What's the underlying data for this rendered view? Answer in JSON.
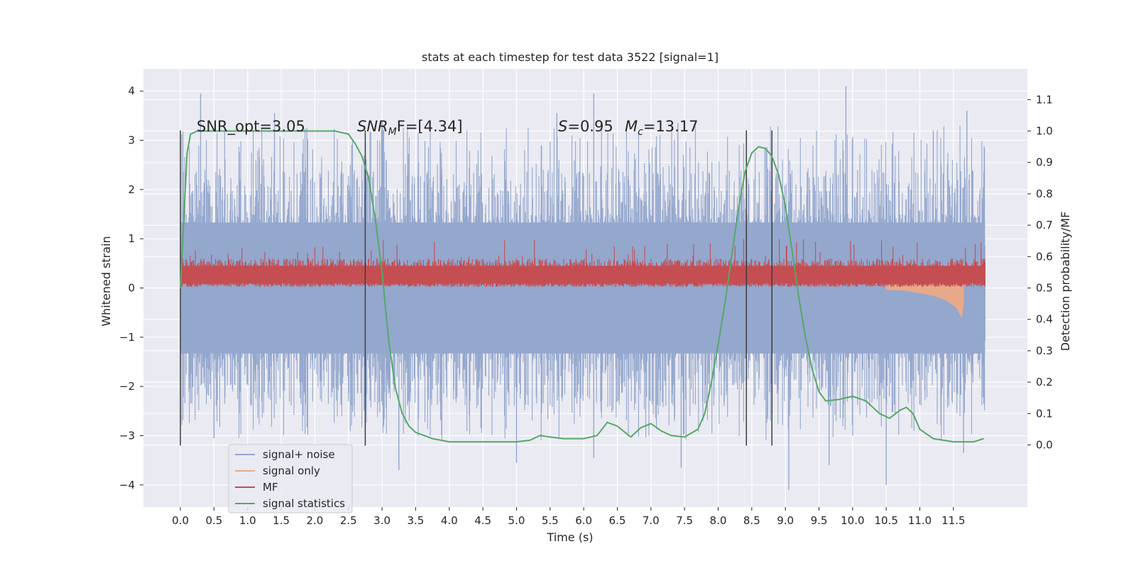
{
  "chart_data": {
    "type": "line",
    "title": "stats at each timestep for test data 3522 [signal=1]",
    "xlabel": "Time (s)",
    "ylabel": "Whitened strain",
    "y2label": "Detection probability/MF",
    "xlim": [
      -0.55,
      12.6
    ],
    "ylim": [
      -4.45,
      4.45
    ],
    "y2lim": [
      -0.198,
      1.198
    ],
    "x_ticks": [
      "0.0",
      "0.5",
      "1.0",
      "1.5",
      "2.0",
      "2.5",
      "3.0",
      "3.5",
      "4.0",
      "4.5",
      "5.0",
      "5.5",
      "6.0",
      "6.5",
      "7.0",
      "7.5",
      "8.0",
      "8.5",
      "9.0",
      "9.5",
      "10.0",
      "10.5",
      "11.0",
      "11.5"
    ],
    "y_ticks": [
      "4",
      "3",
      "2",
      "1",
      "0",
      "−1",
      "−2",
      "−3",
      "−4"
    ],
    "y2_ticks": [
      "1.1",
      "1.0",
      "0.9",
      "0.8",
      "0.7",
      "0.6",
      "0.5",
      "0.4",
      "0.3",
      "0.2",
      "0.1",
      "0.0"
    ],
    "grid": true,
    "legend_position": "lower-left",
    "annotations": {
      "snr_opt": "SNR_opt=3.05",
      "snr_mf_sym": "SNR",
      "snr_mf_sub": "M",
      "snr_mf_rest": "F=[4.34]",
      "s_sym": "S",
      "s_rest": "=0.95",
      "mc_sym": "M",
      "mc_sub": "c",
      "mc_rest": "=13.17"
    },
    "vertical_markers": [
      0.0,
      2.75,
      8.42,
      8.8
    ],
    "vertical_marker_range": [
      -3.2,
      3.2
    ],
    "series": [
      {
        "name": "signal+ noise",
        "color": "#94a7cd",
        "x_range": [
          0.0,
          11.97
        ],
        "typical_upper": 1.9,
        "typical_lower": -1.9,
        "peaks": [
          [
            0.3,
            3.95
          ],
          [
            1.4,
            3.55
          ],
          [
            3.0,
            3.4
          ],
          [
            5.6,
            3.55
          ],
          [
            6.15,
            3.95
          ],
          [
            7.4,
            3.35
          ],
          [
            9.9,
            4.1
          ],
          [
            11.2,
            3.2
          ],
          [
            11.7,
            3.6
          ]
        ],
        "troughs": [
          [
            0.5,
            -3.05
          ],
          [
            3.25,
            -3.7
          ],
          [
            5.0,
            -3.55
          ],
          [
            6.15,
            -3.45
          ],
          [
            7.45,
            -3.65
          ],
          [
            9.05,
            -4.1
          ],
          [
            9.65,
            -3.6
          ],
          [
            10.5,
            -4.0
          ],
          [
            11.65,
            -3.35
          ]
        ]
      },
      {
        "name": "signal only",
        "color": "#e8a98a",
        "x": [
          10.5,
          10.8,
          11.0,
          11.2,
          11.4,
          11.55,
          11.62,
          11.65
        ],
        "upper": [
          0.06,
          0.08,
          0.12,
          0.18,
          0.3,
          0.4,
          0.55,
          0.1
        ],
        "lower": [
          -0.03,
          -0.05,
          -0.1,
          -0.15,
          -0.25,
          -0.4,
          -0.6,
          -0.3
        ]
      },
      {
        "name": "MF",
        "color": "#c44e52",
        "x_range": [
          0.0,
          11.97
        ],
        "typical_upper": 0.6,
        "typical_lower": 0.02,
        "max": 1.0
      },
      {
        "name": "signal statistics",
        "color": "#55a868",
        "axis": "right",
        "x": [
          0.0,
          0.05,
          0.1,
          0.15,
          0.25,
          0.5,
          1.0,
          1.5,
          2.0,
          2.3,
          2.5,
          2.6,
          2.7,
          2.8,
          2.9,
          3.0,
          3.1,
          3.2,
          3.3,
          3.4,
          3.5,
          3.75,
          4.0,
          4.5,
          5.0,
          5.2,
          5.35,
          5.5,
          5.7,
          6.0,
          6.2,
          6.35,
          6.5,
          6.7,
          6.85,
          7.0,
          7.15,
          7.3,
          7.5,
          7.7,
          7.8,
          7.9,
          8.0,
          8.1,
          8.2,
          8.3,
          8.4,
          8.5,
          8.6,
          8.7,
          8.8,
          8.9,
          9.0,
          9.1,
          9.2,
          9.3,
          9.4,
          9.5,
          9.6,
          9.8,
          10.0,
          10.2,
          10.4,
          10.55,
          10.7,
          10.8,
          10.9,
          11.0,
          11.2,
          11.5,
          11.8,
          11.95
        ],
        "y": [
          0.5,
          0.72,
          0.93,
          0.99,
          1.0,
          1.0,
          1.0,
          1.0,
          1.0,
          1.0,
          0.99,
          0.96,
          0.92,
          0.85,
          0.72,
          0.55,
          0.33,
          0.18,
          0.1,
          0.06,
          0.04,
          0.02,
          0.01,
          0.01,
          0.01,
          0.015,
          0.03,
          0.025,
          0.02,
          0.02,
          0.03,
          0.072,
          0.06,
          0.025,
          0.055,
          0.068,
          0.045,
          0.03,
          0.025,
          0.05,
          0.1,
          0.2,
          0.32,
          0.45,
          0.6,
          0.75,
          0.87,
          0.93,
          0.95,
          0.945,
          0.92,
          0.86,
          0.76,
          0.62,
          0.47,
          0.34,
          0.24,
          0.17,
          0.14,
          0.145,
          0.155,
          0.14,
          0.1,
          0.085,
          0.11,
          0.12,
          0.1,
          0.05,
          0.02,
          0.01,
          0.01,
          0.02
        ]
      }
    ]
  }
}
